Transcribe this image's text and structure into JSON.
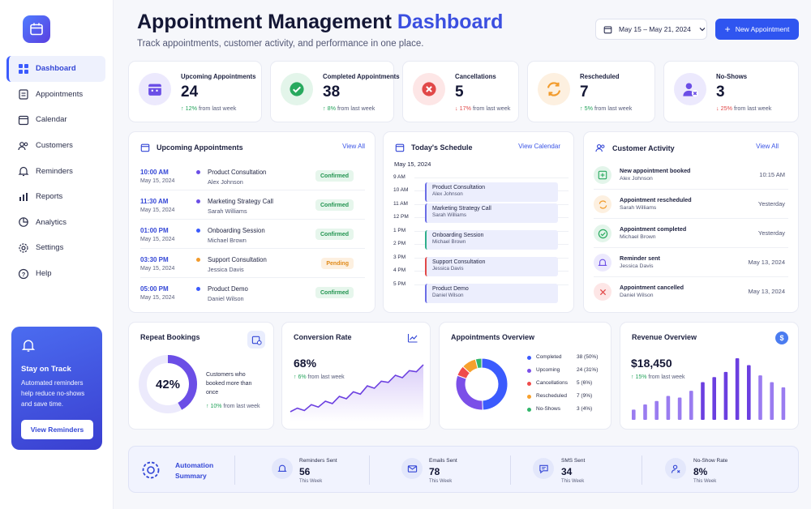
{
  "colors": {
    "primary": "#2f55f0",
    "purple": "#6b4ee6",
    "green": "#22a35a",
    "red": "#e14848",
    "orange": "#f29b2c"
  },
  "header": {
    "title_main": "Appointment Management",
    "title_accent": "Dashboard",
    "subtitle": "Track appointments, customer activity, and performance in one place.",
    "date_range": "May 15 – May 21, 2024",
    "new_button": "New Appointment"
  },
  "sidebar": {
    "items": [
      {
        "label": "Dashboard",
        "icon": "grid-icon"
      },
      {
        "label": "Appointments",
        "icon": "clipboard-icon"
      },
      {
        "label": "Calendar",
        "icon": "calendar-icon"
      },
      {
        "label": "Customers",
        "icon": "users-icon"
      },
      {
        "label": "Reminders",
        "icon": "bell-icon"
      },
      {
        "label": "Reports",
        "icon": "bar-chart-icon"
      },
      {
        "label": "Analytics",
        "icon": "pie-chart-icon"
      },
      {
        "label": "Settings",
        "icon": "gear-icon"
      },
      {
        "label": "Help",
        "icon": "help-icon"
      }
    ],
    "promo": {
      "title": "Stay on Track",
      "text": "Automated reminders help reduce no-shows and save time.",
      "button": "View Reminders"
    }
  },
  "stats": [
    {
      "label": "Upcoming Appointments",
      "value": "24",
      "change": "12%",
      "suffix": "from last week",
      "direction": "up"
    },
    {
      "label": "Completed Appointments",
      "value": "38",
      "change": "8%",
      "suffix": "from last week",
      "direction": "up"
    },
    {
      "label": "Cancellations",
      "value": "5",
      "change": "17%",
      "suffix": "from last week",
      "direction": "down"
    },
    {
      "label": "Rescheduled",
      "value": "7",
      "change": "5%",
      "suffix": "from last week",
      "direction": "up"
    },
    {
      "label": "No-Shows",
      "value": "3",
      "change": "25%",
      "suffix": "from last week",
      "direction": "down"
    }
  ],
  "upcoming": {
    "title": "Upcoming Appointments",
    "link": "View All",
    "rows": [
      {
        "time": "10:00 AM",
        "date": "May 15, 2024",
        "name": "Product Consultation",
        "person": "Alex Johnson",
        "status": "Confirmed",
        "dot": "#6b4ee6"
      },
      {
        "time": "11:30 AM",
        "date": "May 15, 2024",
        "name": "Marketing Strategy Call",
        "person": "Sarah Williams",
        "status": "Confirmed",
        "dot": "#6b4ee6"
      },
      {
        "time": "01:00 PM",
        "date": "May 15, 2024",
        "name": "Onboarding Session",
        "person": "Michael Brown",
        "status": "Confirmed",
        "dot": "#3b5bfd"
      },
      {
        "time": "03:30 PM",
        "date": "May 15, 2024",
        "name": "Support Consultation",
        "person": "Jessica Davis",
        "status": "Pending",
        "dot": "#f29b2c"
      },
      {
        "time": "05:00 PM",
        "date": "May 15, 2024",
        "name": "Product Demo",
        "person": "Daniel Wilson",
        "status": "Confirmed",
        "dot": "#3b5bfd"
      }
    ]
  },
  "schedule": {
    "title": "Today's Schedule",
    "link": "View Calendar",
    "date": "May 15, 2024",
    "hours": [
      "9 AM",
      "10 AM",
      "11 AM",
      "12 PM",
      "1 PM",
      "2 PM",
      "3 PM",
      "4 PM",
      "5 PM"
    ],
    "events": [
      {
        "name": "Product Consultation",
        "person": "Alex Johnson",
        "color": "#6b6ee6"
      },
      {
        "name": "Marketing Strategy Call",
        "person": "Sarah Williams",
        "color": "#6b6ee6"
      },
      {
        "name": "Onboarding Session",
        "person": "Michael Brown",
        "color": "#2fae8c"
      },
      {
        "name": "Support Consultation",
        "person": "Jessica Davis",
        "color": "#e14848"
      },
      {
        "name": "Product Demo",
        "person": "Daniel Wilson",
        "color": "#6b6ee6"
      }
    ]
  },
  "activity": {
    "title": "Customer Activity",
    "link": "View All",
    "rows": [
      {
        "title": "New appointment booked",
        "person": "Alex Johnson",
        "when": "10:15 AM",
        "type": "booked"
      },
      {
        "title": "Appointment rescheduled",
        "person": "Sarah Williams",
        "when": "Yesterday",
        "type": "rescheduled"
      },
      {
        "title": "Appointment completed",
        "person": "Michael Brown",
        "when": "Yesterday",
        "type": "completed"
      },
      {
        "title": "Reminder sent",
        "person": "Jessica Davis",
        "when": "May 13, 2024",
        "type": "reminder"
      },
      {
        "title": "Appointment cancelled",
        "person": "Daniel Wilson",
        "when": "May 13, 2024",
        "type": "cancelled"
      }
    ]
  },
  "repeat": {
    "title": "Repeat Bookings",
    "value": "42%",
    "fraction": 0.42,
    "desc": "Customers who booked more than once",
    "change": "10%",
    "suffix": "from last week"
  },
  "conversion": {
    "title": "Conversion Rate",
    "value": "68%",
    "change": "6%",
    "suffix": "from last week",
    "trend": [
      18,
      21,
      19,
      24,
      22,
      27,
      25,
      31,
      29,
      35,
      33,
      40,
      38,
      44,
      43,
      49,
      47,
      53,
      52,
      58
    ]
  },
  "overview": {
    "title": "Appointments Overview",
    "items": [
      {
        "label": "Completed",
        "value": 38,
        "display": "38 (50%)",
        "color": "#3b5bfd"
      },
      {
        "label": "Upcoming",
        "value": 24,
        "display": "24 (31%)",
        "color": "#7b4fe8"
      },
      {
        "label": "Cancellations",
        "value": 5,
        "display": "5 (6%)",
        "color": "#ef4b4b"
      },
      {
        "label": "Rescheduled",
        "value": 7,
        "display": "7 (9%)",
        "color": "#f7a02c"
      },
      {
        "label": "No-Shows",
        "value": 3,
        "display": "3 (4%)",
        "color": "#32b66a"
      }
    ]
  },
  "revenue": {
    "title": "Revenue Overview",
    "value": "$18,450",
    "change": "15%",
    "suffix": "from last week",
    "bars": [
      12,
      18,
      22,
      28,
      26,
      34,
      44,
      50,
      56,
      72,
      64,
      52,
      44,
      38
    ]
  },
  "automation": {
    "title": "Automation Summary",
    "items": [
      {
        "label": "Reminders Sent",
        "value": "56",
        "sub": "This Week",
        "icon": "bell-icon"
      },
      {
        "label": "Emails Sent",
        "value": "78",
        "sub": "This Week",
        "icon": "mail-icon"
      },
      {
        "label": "SMS Sent",
        "value": "34",
        "sub": "This Week",
        "icon": "chat-icon"
      },
      {
        "label": "No-Show Rate",
        "value": "8%",
        "sub": "This Week",
        "icon": "user-x-icon"
      }
    ]
  }
}
